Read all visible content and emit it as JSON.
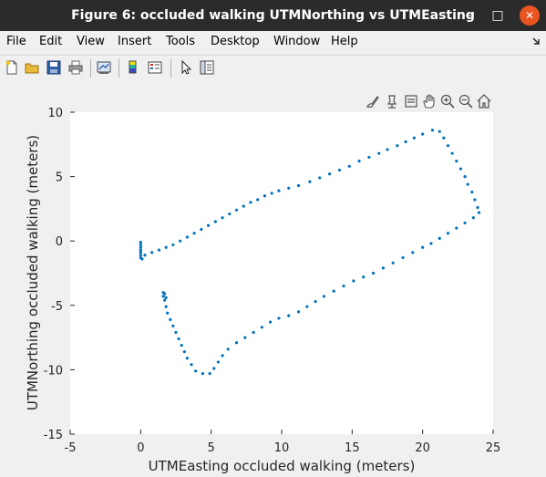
{
  "window": {
    "title": "Figure 6: occluded walking UTMNorthing vs UTMEasting",
    "controls": {
      "minimize": "–",
      "maximize": "□",
      "close": "✕"
    }
  },
  "menu": {
    "items": [
      "File",
      "Edit",
      "View",
      "Insert",
      "Tools",
      "Desktop",
      "Window",
      "Help"
    ],
    "overflow_icon": "dock-arrow-icon"
  },
  "toolbar": {
    "icons": [
      "new-figure-icon",
      "open-file-icon",
      "save-icon",
      "print-icon",
      "link-plot-icon",
      "insert-colorbar-icon",
      "insert-legend-icon",
      "edit-plot-pointer-icon",
      "property-inspector-icon"
    ]
  },
  "axes_toolbar": {
    "icons": [
      "brush-icon",
      "data-tips-icon",
      "export-icon",
      "pan-hand-icon",
      "zoom-in-icon",
      "zoom-out-icon",
      "restore-home-icon"
    ]
  },
  "colors": {
    "series": "#0072bd",
    "titlebar": "#2b2b2b",
    "close": "#e95420"
  },
  "chart_data": {
    "type": "scatter",
    "title": "",
    "xlabel": "UTMEasting occluded walking (meters)",
    "ylabel": "UTMNorthing occluded walking (meters)",
    "xlim": [
      -5,
      25
    ],
    "ylim": [
      -15,
      10
    ],
    "xticks": [
      -5,
      0,
      5,
      10,
      15,
      20,
      25
    ],
    "yticks": [
      -15,
      -10,
      -5,
      0,
      5,
      10
    ],
    "grid": false,
    "legend": "none",
    "series": [
      {
        "points": [
          [
            0.0,
            -0.1
          ],
          [
            0.0,
            -0.3
          ],
          [
            0.0,
            -0.5
          ],
          [
            0.0,
            -0.7
          ],
          [
            0.0,
            -0.9
          ],
          [
            0.0,
            -1.1
          ],
          [
            0.0,
            -1.3
          ],
          [
            0.1,
            -1.4
          ],
          [
            0.3,
            -1.1
          ],
          [
            0.8,
            -0.9
          ],
          [
            1.3,
            -0.7
          ],
          [
            1.8,
            -0.5
          ],
          [
            2.3,
            -0.3
          ],
          [
            2.8,
            0.0
          ],
          [
            3.3,
            0.3
          ],
          [
            3.8,
            0.6
          ],
          [
            4.3,
            0.9
          ],
          [
            4.8,
            1.2
          ],
          [
            5.3,
            1.5
          ],
          [
            5.8,
            1.8
          ],
          [
            6.3,
            2.1
          ],
          [
            6.8,
            2.4
          ],
          [
            7.3,
            2.7
          ],
          [
            7.8,
            3.0
          ],
          [
            8.3,
            3.2
          ],
          [
            8.8,
            3.5
          ],
          [
            9.3,
            3.7
          ],
          [
            9.8,
            3.9
          ],
          [
            10.5,
            4.1
          ],
          [
            11.2,
            4.3
          ],
          [
            12.0,
            4.6
          ],
          [
            12.7,
            4.9
          ],
          [
            13.4,
            5.2
          ],
          [
            14.1,
            5.5
          ],
          [
            14.8,
            5.8
          ],
          [
            15.5,
            6.2
          ],
          [
            16.2,
            6.5
          ],
          [
            16.9,
            6.8
          ],
          [
            17.5,
            7.1
          ],
          [
            18.2,
            7.4
          ],
          [
            18.8,
            7.7
          ],
          [
            19.4,
            8.0
          ],
          [
            20.0,
            8.3
          ],
          [
            20.7,
            8.6
          ],
          [
            21.2,
            8.5
          ],
          [
            21.5,
            8.0
          ],
          [
            21.8,
            7.4
          ],
          [
            22.1,
            6.8
          ],
          [
            22.4,
            6.2
          ],
          [
            22.7,
            5.6
          ],
          [
            23.0,
            5.0
          ],
          [
            23.2,
            4.4
          ],
          [
            23.5,
            3.8
          ],
          [
            23.7,
            3.2
          ],
          [
            23.9,
            2.6
          ],
          [
            24.0,
            2.2
          ],
          [
            23.6,
            1.8
          ],
          [
            23.0,
            1.4
          ],
          [
            22.4,
            1.0
          ],
          [
            21.8,
            0.6
          ],
          [
            21.2,
            0.2
          ],
          [
            20.6,
            -0.2
          ],
          [
            20.0,
            -0.5
          ],
          [
            19.3,
            -0.9
          ],
          [
            18.6,
            -1.3
          ],
          [
            17.9,
            -1.7
          ],
          [
            17.2,
            -2.1
          ],
          [
            16.5,
            -2.5
          ],
          [
            15.8,
            -2.8
          ],
          [
            15.1,
            -3.1
          ],
          [
            14.4,
            -3.5
          ],
          [
            13.7,
            -3.9
          ],
          [
            13.0,
            -4.3
          ],
          [
            12.4,
            -4.7
          ],
          [
            11.8,
            -5.1
          ],
          [
            11.2,
            -5.5
          ],
          [
            10.5,
            -5.8
          ],
          [
            9.8,
            -6.0
          ],
          [
            9.2,
            -6.3
          ],
          [
            8.6,
            -6.7
          ],
          [
            8.0,
            -7.1
          ],
          [
            7.4,
            -7.5
          ],
          [
            6.8,
            -7.9
          ],
          [
            6.2,
            -8.4
          ],
          [
            5.8,
            -8.9
          ],
          [
            5.5,
            -9.4
          ],
          [
            5.2,
            -9.9
          ],
          [
            4.9,
            -10.3
          ],
          [
            4.4,
            -10.3
          ],
          [
            3.9,
            -10.1
          ],
          [
            3.6,
            -9.6
          ],
          [
            3.3,
            -9.1
          ],
          [
            3.1,
            -8.6
          ],
          [
            2.9,
            -8.1
          ],
          [
            2.7,
            -7.6
          ],
          [
            2.5,
            -7.1
          ],
          [
            2.3,
            -6.6
          ],
          [
            2.1,
            -6.1
          ],
          [
            1.9,
            -5.6
          ],
          [
            1.8,
            -5.1
          ],
          [
            1.7,
            -4.6
          ],
          [
            1.6,
            -4.3
          ],
          [
            1.7,
            -4.1
          ],
          [
            1.6,
            -4.0
          ],
          [
            1.8,
            -4.4
          ]
        ]
      }
    ]
  }
}
